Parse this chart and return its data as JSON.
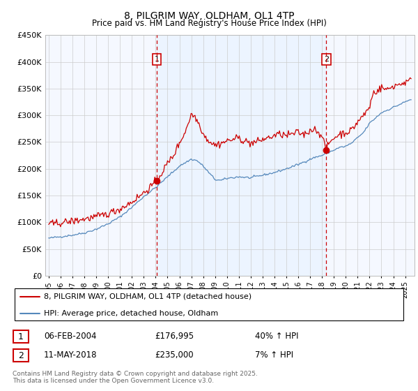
{
  "title": "8, PILGRIM WAY, OLDHAM, OL1 4TP",
  "subtitle": "Price paid vs. HM Land Registry's House Price Index (HPI)",
  "ylim": [
    0,
    450000
  ],
  "yticks": [
    0,
    50000,
    100000,
    150000,
    200000,
    250000,
    300000,
    350000,
    400000,
    450000
  ],
  "ytick_labels": [
    "£0",
    "£50K",
    "£100K",
    "£150K",
    "£200K",
    "£250K",
    "£300K",
    "£350K",
    "£400K",
    "£450K"
  ],
  "purchase1_date": 2004.09,
  "purchase1_price": 176995,
  "purchase1_label": "1",
  "purchase1_display": "06-FEB-2004",
  "purchase1_price_display": "£176,995",
  "purchase1_hpi": "40% ↑ HPI",
  "purchase2_date": 2018.36,
  "purchase2_price": 235000,
  "purchase2_label": "2",
  "purchase2_display": "11-MAY-2018",
  "purchase2_price_display": "£235,000",
  "purchase2_hpi": "7% ↑ HPI",
  "hpi_color": "#5588bb",
  "price_color": "#cc0000",
  "shade_color": "#ddeeff",
  "grid_color": "#cccccc",
  "background_color": "#ffffff",
  "chart_bg": "#f5f8ff",
  "legend_label_price": "8, PILGRIM WAY, OLDHAM, OL1 4TP (detached house)",
  "legend_label_hpi": "HPI: Average price, detached house, Oldham",
  "footer": "Contains HM Land Registry data © Crown copyright and database right 2025.\nThis data is licensed under the Open Government Licence v3.0."
}
